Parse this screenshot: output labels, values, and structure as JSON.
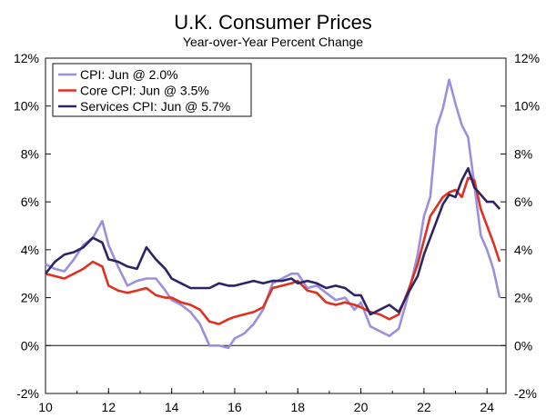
{
  "chart_data": {
    "type": "line",
    "title": "U.K. Consumer Prices",
    "subtitle": "Year-over-Year Percent Change",
    "xlim": [
      2010,
      2024.6
    ],
    "ylim": [
      -2,
      12
    ],
    "x_ticks": [
      10,
      12,
      14,
      16,
      18,
      20,
      22,
      24
    ],
    "y_ticks_left": [
      "12%",
      "10%",
      "8%",
      "6%",
      "4%",
      "2%",
      "0%",
      "-2%"
    ],
    "y_ticks_right": [
      "12%",
      "10%",
      "8%",
      "6%",
      "4%",
      "2%",
      "0%",
      "-2%"
    ],
    "legend_position": "top-left",
    "grid": false,
    "series": [
      {
        "name": "CPI: Jun @ 2.0%",
        "color": "#9b8fe0",
        "x": [
          2010.0,
          2010.3,
          2010.6,
          2010.9,
          2011.2,
          2011.5,
          2011.8,
          2012.0,
          2012.3,
          2012.6,
          2012.9,
          2013.2,
          2013.5,
          2013.8,
          2014.0,
          2014.3,
          2014.6,
          2014.9,
          2015.2,
          2015.5,
          2015.8,
          2016.0,
          2016.3,
          2016.6,
          2016.9,
          2017.2,
          2017.5,
          2017.8,
          2018.0,
          2018.3,
          2018.6,
          2018.9,
          2019.2,
          2019.5,
          2019.8,
          2020.0,
          2020.3,
          2020.6,
          2020.9,
          2021.2,
          2021.5,
          2021.8,
          2022.0,
          2022.2,
          2022.4,
          2022.6,
          2022.8,
          2023.0,
          2023.2,
          2023.4,
          2023.6,
          2023.8,
          2024.0,
          2024.2,
          2024.4
        ],
        "values": [
          3.4,
          3.2,
          3.1,
          3.6,
          4.2,
          4.5,
          5.2,
          4.2,
          3.3,
          2.5,
          2.7,
          2.8,
          2.8,
          2.3,
          1.9,
          1.7,
          1.4,
          0.9,
          0.0,
          0.0,
          -0.1,
          0.3,
          0.5,
          0.9,
          1.5,
          2.6,
          2.8,
          3.0,
          3.0,
          2.4,
          2.5,
          2.2,
          1.9,
          2.0,
          1.5,
          1.8,
          0.8,
          0.6,
          0.4,
          0.7,
          2.1,
          3.8,
          5.4,
          6.2,
          9.1,
          9.9,
          11.1,
          10.1,
          9.2,
          8.7,
          6.7,
          4.6,
          4.0,
          3.2,
          2.0
        ]
      },
      {
        "name": "Core CPI: Jun @ 3.5%",
        "color": "#e0301e",
        "x": [
          2010.0,
          2010.3,
          2010.6,
          2010.9,
          2011.2,
          2011.5,
          2011.8,
          2012.0,
          2012.3,
          2012.6,
          2012.9,
          2013.2,
          2013.5,
          2013.8,
          2014.0,
          2014.3,
          2014.6,
          2014.9,
          2015.2,
          2015.5,
          2015.8,
          2016.0,
          2016.3,
          2016.6,
          2016.9,
          2017.2,
          2017.5,
          2017.8,
          2018.0,
          2018.3,
          2018.6,
          2018.9,
          2019.2,
          2019.5,
          2019.8,
          2020.0,
          2020.3,
          2020.6,
          2020.9,
          2021.2,
          2021.5,
          2021.8,
          2022.0,
          2022.2,
          2022.4,
          2022.6,
          2022.8,
          2023.0,
          2023.2,
          2023.4,
          2023.6,
          2023.8,
          2024.0,
          2024.2,
          2024.4
        ],
        "values": [
          3.0,
          2.9,
          2.8,
          3.0,
          3.2,
          3.5,
          3.3,
          2.5,
          2.3,
          2.2,
          2.3,
          2.4,
          2.1,
          2.0,
          2.0,
          1.8,
          1.7,
          1.5,
          1.0,
          0.9,
          1.1,
          1.2,
          1.3,
          1.4,
          1.6,
          2.4,
          2.5,
          2.6,
          2.7,
          2.3,
          2.2,
          1.8,
          1.7,
          1.8,
          1.7,
          1.6,
          1.4,
          1.3,
          1.1,
          1.3,
          2.3,
          3.4,
          4.4,
          5.4,
          5.8,
          6.2,
          6.4,
          6.5,
          6.2,
          7.0,
          6.9,
          5.7,
          5.0,
          4.3,
          3.5
        ]
      },
      {
        "name": "Services CPI: Jun @ 5.7%",
        "color": "#2b2466",
        "x": [
          2010.0,
          2010.3,
          2010.6,
          2010.9,
          2011.2,
          2011.5,
          2011.8,
          2012.0,
          2012.3,
          2012.6,
          2012.9,
          2013.2,
          2013.5,
          2013.8,
          2014.0,
          2014.3,
          2014.6,
          2014.9,
          2015.2,
          2015.5,
          2015.8,
          2016.0,
          2016.3,
          2016.6,
          2016.9,
          2017.2,
          2017.5,
          2017.8,
          2018.0,
          2018.3,
          2018.6,
          2018.9,
          2019.2,
          2019.5,
          2019.8,
          2020.0,
          2020.3,
          2020.6,
          2020.9,
          2021.2,
          2021.5,
          2021.8,
          2022.0,
          2022.2,
          2022.4,
          2022.6,
          2022.8,
          2023.0,
          2023.2,
          2023.4,
          2023.6,
          2023.8,
          2024.0,
          2024.2,
          2024.4
        ],
        "values": [
          3.0,
          3.5,
          3.8,
          3.9,
          4.1,
          4.5,
          4.3,
          3.6,
          3.5,
          3.3,
          3.2,
          4.1,
          3.6,
          3.2,
          2.8,
          2.6,
          2.4,
          2.4,
          2.4,
          2.6,
          2.5,
          2.5,
          2.6,
          2.7,
          2.6,
          2.7,
          2.7,
          2.8,
          2.6,
          2.7,
          2.6,
          2.4,
          2.5,
          2.4,
          2.1,
          2.1,
          1.3,
          1.5,
          1.7,
          1.4,
          2.2,
          2.9,
          3.8,
          4.5,
          5.2,
          5.9,
          6.3,
          6.2,
          6.9,
          7.4,
          6.6,
          6.3,
          6.0,
          6.0,
          5.7
        ]
      }
    ]
  }
}
